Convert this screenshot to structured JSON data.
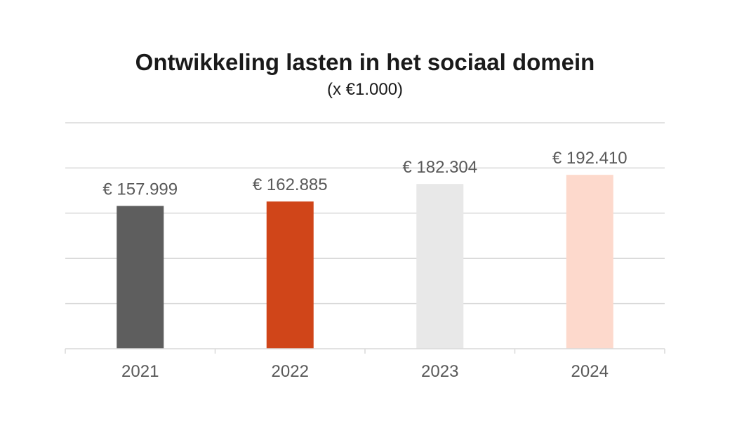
{
  "chart_data": {
    "type": "bar",
    "title": "Ontwikkeling lasten in het sociaal domein",
    "subtitle": "(x €1.000)",
    "categories": [
      "2021",
      "2022",
      "2023",
      "2024"
    ],
    "values": [
      157999,
      162885,
      182304,
      192410
    ],
    "data_labels": [
      "€ 157.999",
      "€ 162.885",
      "€ 182.304",
      "€ 192.410"
    ],
    "colors": [
      "#5e5e5e",
      "#d04519",
      "#e8e8e8",
      "#fdd9cc"
    ],
    "ylim": [
      0,
      250000
    ],
    "y_gridline_step": 50000,
    "grid": true,
    "y_axis_labels_shown": false,
    "legend": "none"
  }
}
